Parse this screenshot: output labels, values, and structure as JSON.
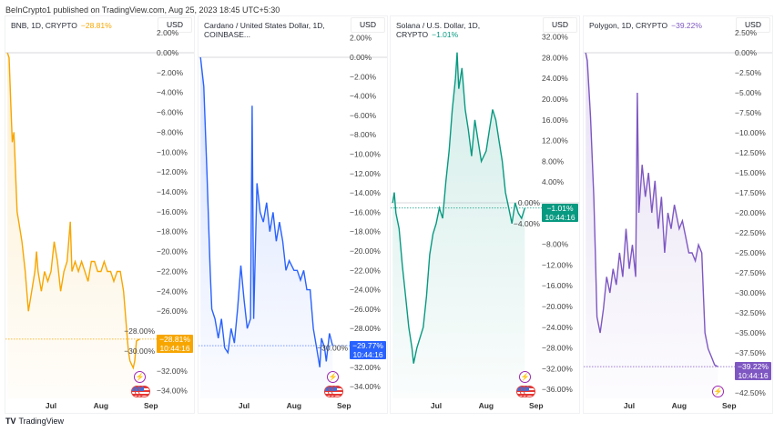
{
  "publisher_line": "BeInCrypto1 published on TradingView.com, Aug 25, 2023 18:45 UTC+5:30",
  "footer_brand": "TradingView",
  "footer_logo": "TV",
  "charts": [
    {
      "title": "BNB, 1D, CRYPTO",
      "change": "−28.81%",
      "currency": "USD",
      "color": "#f7a600",
      "last_label": "−28.81%",
      "countdown": "10:44:16",
      "last": -28.81,
      "y_ticks": [
        2,
        0,
        -2,
        -4,
        -6,
        -8,
        -10,
        -12,
        -14,
        -16,
        -18,
        -20,
        -22,
        -24,
        -26,
        -28,
        -30,
        -32,
        -34
      ],
      "y_tick_labels": [
        "2.00%",
        "0.00%",
        "−2.00%",
        "−4.00%",
        "−6.00%",
        "−8.00%",
        "−10.00%",
        "−12.00%",
        "−14.00%",
        "−16.00%",
        "−18.00%",
        "−20.00%",
        "−22.00%",
        "−24.00%",
        "−26.00%",
        "−28.00%",
        "−30.00%",
        "−32.00%",
        "−34.00%"
      ],
      "x_ticks": [
        "Jul",
        "Aug",
        "Sep"
      ],
      "events": [
        "lightning",
        "flags"
      ],
      "series": [
        [
          "2023-06-04",
          0
        ],
        [
          "2023-06-05",
          -0.5
        ],
        [
          "2023-06-06",
          -5
        ],
        [
          "2023-06-07",
          -9
        ],
        [
          "2023-06-08",
          -8
        ],
        [
          "2023-06-10",
          -16
        ],
        [
          "2023-06-11",
          -17
        ],
        [
          "2023-06-13",
          -19
        ],
        [
          "2023-06-15",
          -22
        ],
        [
          "2023-06-17",
          -26
        ],
        [
          "2023-06-19",
          -24
        ],
        [
          "2023-06-21",
          -22
        ],
        [
          "2023-06-22",
          -20
        ],
        [
          "2023-06-23",
          -22
        ],
        [
          "2023-06-25",
          -24
        ],
        [
          "2023-06-27",
          -22
        ],
        [
          "2023-06-29",
          -23
        ],
        [
          "2023-07-01",
          -22
        ],
        [
          "2023-07-03",
          -19
        ],
        [
          "2023-07-05",
          -21
        ],
        [
          "2023-07-07",
          -24
        ],
        [
          "2023-07-09",
          -22
        ],
        [
          "2023-07-11",
          -21
        ],
        [
          "2023-07-13",
          -17
        ],
        [
          "2023-07-14",
          -22
        ],
        [
          "2023-07-16",
          -21
        ],
        [
          "2023-07-18",
          -22
        ],
        [
          "2023-07-20",
          -21
        ],
        [
          "2023-07-22",
          -22
        ],
        [
          "2023-07-24",
          -23
        ],
        [
          "2023-07-26",
          -21
        ],
        [
          "2023-07-28",
          -21
        ],
        [
          "2023-07-30",
          -22
        ],
        [
          "2023-08-01",
          -22
        ],
        [
          "2023-08-03",
          -21
        ],
        [
          "2023-08-05",
          -22
        ],
        [
          "2023-08-07",
          -22
        ],
        [
          "2023-08-09",
          -23
        ],
        [
          "2023-08-11",
          -22
        ],
        [
          "2023-08-13",
          -22
        ],
        [
          "2023-08-15",
          -24
        ],
        [
          "2023-08-17",
          -28
        ],
        [
          "2023-08-18",
          -30
        ],
        [
          "2023-08-19",
          -31
        ],
        [
          "2023-08-21",
          -31.7
        ],
        [
          "2023-08-22",
          -31
        ],
        [
          "2023-08-23",
          -29
        ],
        [
          "2023-08-25",
          -28.81
        ]
      ]
    },
    {
      "title": "Cardano / United States Dollar, 1D, COINBASE...",
      "change": "",
      "currency": "USD",
      "color": "#2962ff",
      "last_label": "−29.77%",
      "countdown": "10:44:16",
      "last": -29.77,
      "y_ticks": [
        2,
        0,
        -2,
        -4,
        -6,
        -8,
        -10,
        -12,
        -14,
        -16,
        -18,
        -20,
        -22,
        -24,
        -26,
        -28,
        -30,
        -32,
        -34
      ],
      "y_tick_labels": [
        "2.00%",
        "0.00%",
        "−2.00%",
        "−4.00%",
        "−6.00%",
        "−8.00%",
        "−10.00%",
        "−12.00%",
        "−14.00%",
        "−16.00%",
        "−18.00%",
        "−20.00%",
        "−22.00%",
        "−24.00%",
        "−26.00%",
        "−28.00%",
        "−30.00%",
        "−32.00%",
        "−34.00%"
      ],
      "x_ticks": [
        "Jul",
        "Aug",
        "Sep"
      ],
      "events": [
        "lightning",
        "flags"
      ],
      "series": [
        [
          "2023-06-04",
          0
        ],
        [
          "2023-06-06",
          -3
        ],
        [
          "2023-06-08",
          -12
        ],
        [
          "2023-06-10",
          -22
        ],
        [
          "2023-06-11",
          -26
        ],
        [
          "2023-06-13",
          -27
        ],
        [
          "2023-06-15",
          -29
        ],
        [
          "2023-06-17",
          -27
        ],
        [
          "2023-06-19",
          -30
        ],
        [
          "2023-06-21",
          -30.5
        ],
        [
          "2023-06-23",
          -28
        ],
        [
          "2023-06-25",
          -29.5
        ],
        [
          "2023-06-27",
          -26
        ],
        [
          "2023-06-29",
          -21.5
        ],
        [
          "2023-07-01",
          -25
        ],
        [
          "2023-07-03",
          -28
        ],
        [
          "2023-07-05",
          -27
        ],
        [
          "2023-07-06",
          -5
        ],
        [
          "2023-07-07",
          -27
        ],
        [
          "2023-07-09",
          -13
        ],
        [
          "2023-07-11",
          -16
        ],
        [
          "2023-07-13",
          -17
        ],
        [
          "2023-07-15",
          -15
        ],
        [
          "2023-07-17",
          -18
        ],
        [
          "2023-07-19",
          -16
        ],
        [
          "2023-07-21",
          -19
        ],
        [
          "2023-07-23",
          -17
        ],
        [
          "2023-07-25",
          -19
        ],
        [
          "2023-07-27",
          -22
        ],
        [
          "2023-07-29",
          -21
        ],
        [
          "2023-08-01",
          -22
        ],
        [
          "2023-08-03",
          -22
        ],
        [
          "2023-08-05",
          -23
        ],
        [
          "2023-08-07",
          -22
        ],
        [
          "2023-08-09",
          -24
        ],
        [
          "2023-08-11",
          -24
        ],
        [
          "2023-08-13",
          -28
        ],
        [
          "2023-08-15",
          -30
        ],
        [
          "2023-08-17",
          -32
        ],
        [
          "2023-08-18",
          -29
        ],
        [
          "2023-08-20",
          -30
        ],
        [
          "2023-08-21",
          -31.4
        ],
        [
          "2023-08-23",
          -28.5
        ],
        [
          "2023-08-25",
          -29.77
        ]
      ]
    },
    {
      "title": "Solana / U.S. Dollar, 1D, CRYPTO",
      "change": "−1.01%",
      "currency": "USD",
      "color": "#089981",
      "last_label": "−1.01%",
      "countdown": "10:44:16",
      "last": -1.01,
      "y_ticks": [
        32,
        28,
        24,
        20,
        16,
        12,
        8,
        4,
        0,
        -4,
        -8,
        -12,
        -16,
        -20,
        -24,
        -28,
        -32,
        -36
      ],
      "y_tick_labels": [
        "32.00%",
        "28.00%",
        "24.00%",
        "20.00%",
        "16.00%",
        "12.00%",
        "8.00%",
        "4.00%",
        "0.00%",
        "−4.00%",
        "−8.00%",
        "−12.00%",
        "−16.00%",
        "−20.00%",
        "−24.00%",
        "−28.00%",
        "−32.00%",
        "−36.00%"
      ],
      "x_ticks": [
        "Jul",
        "Aug",
        "Sep"
      ],
      "events": [
        "lightning",
        "flags"
      ],
      "series": [
        [
          "2023-06-04",
          0
        ],
        [
          "2023-06-05",
          2
        ],
        [
          "2023-06-06",
          -2
        ],
        [
          "2023-06-08",
          -5
        ],
        [
          "2023-06-10",
          -12
        ],
        [
          "2023-06-12",
          -18
        ],
        [
          "2023-06-14",
          -24
        ],
        [
          "2023-06-16",
          -28
        ],
        [
          "2023-06-17",
          -31
        ],
        [
          "2023-06-19",
          -28
        ],
        [
          "2023-06-21",
          -26
        ],
        [
          "2023-06-23",
          -24
        ],
        [
          "2023-06-25",
          -18
        ],
        [
          "2023-06-27",
          -10
        ],
        [
          "2023-06-29",
          -6
        ],
        [
          "2023-07-01",
          -4
        ],
        [
          "2023-07-03",
          -1
        ],
        [
          "2023-07-05",
          -3
        ],
        [
          "2023-07-07",
          4
        ],
        [
          "2023-07-09",
          10
        ],
        [
          "2023-07-11",
          18
        ],
        [
          "2023-07-13",
          24
        ],
        [
          "2023-07-14",
          29
        ],
        [
          "2023-07-15",
          22
        ],
        [
          "2023-07-17",
          26
        ],
        [
          "2023-07-19",
          18
        ],
        [
          "2023-07-21",
          14
        ],
        [
          "2023-07-23",
          9
        ],
        [
          "2023-07-25",
          16
        ],
        [
          "2023-07-27",
          12
        ],
        [
          "2023-07-29",
          8
        ],
        [
          "2023-08-01",
          10
        ],
        [
          "2023-08-03",
          14
        ],
        [
          "2023-08-05",
          18
        ],
        [
          "2023-08-07",
          16
        ],
        [
          "2023-08-09",
          12
        ],
        [
          "2023-08-11",
          8
        ],
        [
          "2023-08-13",
          2
        ],
        [
          "2023-08-15",
          -1
        ],
        [
          "2023-08-17",
          -4
        ],
        [
          "2023-08-19",
          0
        ],
        [
          "2023-08-21",
          -2
        ],
        [
          "2023-08-23",
          -3
        ],
        [
          "2023-08-25",
          -1.01
        ]
      ]
    },
    {
      "title": "Polygon, 1D, CRYPTO",
      "change": "−39.22%",
      "currency": "USD",
      "color": "#7e57c2",
      "last_label": "−39.22%",
      "countdown": "10:44:16",
      "last": -39.22,
      "y_ticks": [
        2.5,
        0,
        -2.5,
        -5,
        -7.5,
        -10,
        -12.5,
        -15,
        -17.5,
        -20,
        -22.5,
        -25,
        -27.5,
        -30,
        -32.5,
        -35,
        -37.5,
        -40,
        -42.5
      ],
      "y_tick_labels": [
        "2.50%",
        "0.00%",
        "−2.50%",
        "−5.00%",
        "−7.50%",
        "−10.00%",
        "−12.50%",
        "−15.00%",
        "−17.50%",
        "−20.00%",
        "−22.50%",
        "−25.00%",
        "−27.50%",
        "−30.00%",
        "−32.50%",
        "−35.00%",
        "−37.50%",
        "",
        "−42.50%"
      ],
      "x_ticks": [
        "Jul",
        "Aug",
        "Sep"
      ],
      "events": [
        "lightning"
      ],
      "series": [
        [
          "2023-06-04",
          0
        ],
        [
          "2023-06-05",
          -1
        ],
        [
          "2023-06-07",
          -8
        ],
        [
          "2023-06-09",
          -18
        ],
        [
          "2023-06-10",
          -25
        ],
        [
          "2023-06-11",
          -33
        ],
        [
          "2023-06-13",
          -35
        ],
        [
          "2023-06-15",
          -32
        ],
        [
          "2023-06-17",
          -28
        ],
        [
          "2023-06-19",
          -30
        ],
        [
          "2023-06-21",
          -27
        ],
        [
          "2023-06-23",
          -29
        ],
        [
          "2023-06-25",
          -25
        ],
        [
          "2023-06-27",
          -28
        ],
        [
          "2023-06-29",
          -22
        ],
        [
          "2023-07-01",
          -27
        ],
        [
          "2023-07-03",
          -24
        ],
        [
          "2023-07-05",
          -28
        ],
        [
          "2023-07-06",
          -5
        ],
        [
          "2023-07-07",
          -20
        ],
        [
          "2023-07-09",
          -14
        ],
        [
          "2023-07-11",
          -18
        ],
        [
          "2023-07-13",
          -15
        ],
        [
          "2023-07-15",
          -20
        ],
        [
          "2023-07-17",
          -16
        ],
        [
          "2023-07-19",
          -22
        ],
        [
          "2023-07-21",
          -18
        ],
        [
          "2023-07-23",
          -25
        ],
        [
          "2023-07-25",
          -20
        ],
        [
          "2023-07-27",
          -22
        ],
        [
          "2023-07-29",
          -19
        ],
        [
          "2023-08-01",
          -22
        ],
        [
          "2023-08-03",
          -21
        ],
        [
          "2023-08-05",
          -23
        ],
        [
          "2023-08-07",
          -25
        ],
        [
          "2023-08-09",
          -25
        ],
        [
          "2023-08-11",
          -26
        ],
        [
          "2023-08-13",
          -24
        ],
        [
          "2023-08-15",
          -25
        ],
        [
          "2023-08-16",
          -30
        ],
        [
          "2023-08-17",
          -35
        ],
        [
          "2023-08-19",
          -37
        ],
        [
          "2023-08-21",
          -38
        ],
        [
          "2023-08-23",
          -39
        ],
        [
          "2023-08-25",
          -39.22
        ]
      ]
    }
  ]
}
